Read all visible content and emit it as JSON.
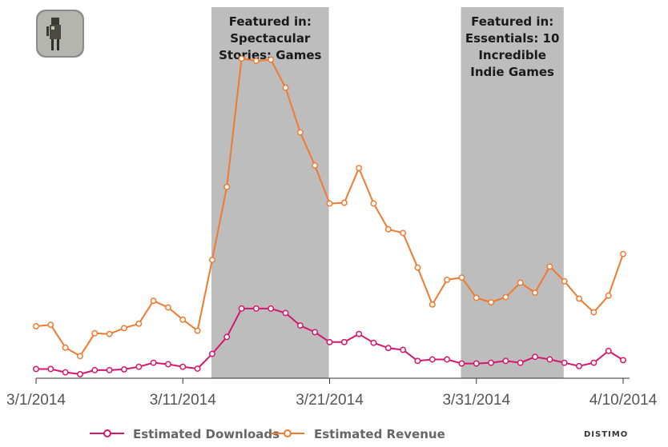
{
  "app_icon": "robot-figure-app-icon",
  "brand": "DISTIMO",
  "chart_data": {
    "type": "line",
    "title": "",
    "xlabel": "",
    "ylabel": "",
    "ylim": [
      0,
      100
    ],
    "grid": false,
    "x_ticks": [
      "3/1/2014",
      "3/11/2014",
      "3/21/2014",
      "3/31/2014",
      "4/10/2014"
    ],
    "x": [
      "3/1",
      "3/2",
      "3/3",
      "3/4",
      "3/5",
      "3/6",
      "3/7",
      "3/8",
      "3/9",
      "3/10",
      "3/11",
      "3/12",
      "3/13",
      "3/14",
      "3/15",
      "3/16",
      "3/17",
      "3/18",
      "3/19",
      "3/20",
      "3/21",
      "3/22",
      "3/23",
      "3/24",
      "3/25",
      "3/26",
      "3/27",
      "3/28",
      "3/29",
      "3/30",
      "3/31",
      "4/1",
      "4/2",
      "4/3",
      "4/4",
      "4/5",
      "4/6",
      "4/7",
      "4/8",
      "4/9",
      "4/10"
    ],
    "series": [
      {
        "name": "Estimated Downloads",
        "color": "#d4166e",
        "values": [
          2.5,
          2.5,
          1.6,
          1.1,
          2.2,
          2.2,
          2.4,
          3.1,
          4.2,
          3.8,
          3.1,
          2.6,
          6.6,
          11.2,
          18.9,
          18.9,
          18.9,
          17.7,
          14.3,
          12.5,
          9.8,
          9.8,
          12.0,
          9.6,
          8.2,
          7.7,
          4.7,
          5.1,
          5.1,
          4.0,
          4.0,
          4.2,
          4.7,
          4.2,
          5.8,
          5.1,
          4.2,
          3.3,
          4.2,
          7.4,
          4.9
        ]
      },
      {
        "name": "Estimated Revenue",
        "color": "#f07a30",
        "values": [
          14.1,
          14.5,
          8.3,
          6.0,
          12.2,
          12.0,
          13.6,
          14.8,
          21.0,
          19.2,
          15.9,
          12.9,
          32.1,
          51.9,
          86.7,
          86.1,
          86.4,
          78.8,
          66.7,
          57.7,
          47.4,
          47.6,
          57.0,
          47.4,
          40.4,
          39.4,
          30.0,
          20.0,
          26.7,
          27.3,
          21.8,
          20.6,
          22.0,
          25.9,
          23.2,
          30.3,
          26.3,
          21.6,
          17.9,
          22.4,
          33.7
        ]
      }
    ],
    "annotations": [
      {
        "start": "3/13",
        "end": "3/21",
        "lines": [
          "Featured in:",
          "Spectacular",
          "Stories: Games"
        ]
      },
      {
        "start": "3/30",
        "end": "4/6",
        "lines": [
          "Featured in:",
          "Essentials: 10",
          "Incredible",
          "Indie Games"
        ]
      }
    ],
    "legend": "bottom-left"
  }
}
